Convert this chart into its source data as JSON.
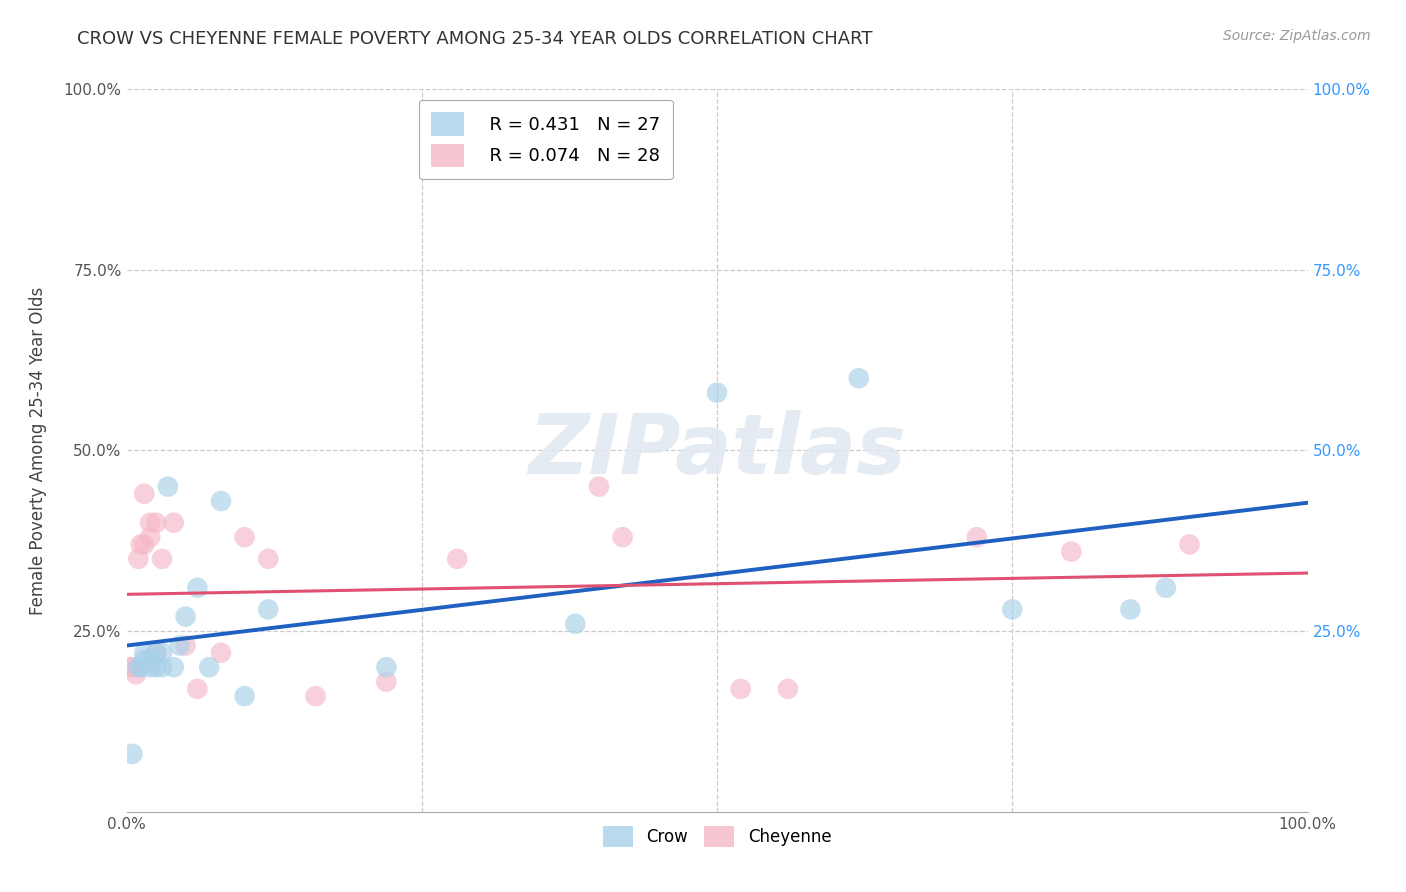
{
  "title": "CROW VS CHEYENNE FEMALE POVERTY AMONG 25-34 YEAR OLDS CORRELATION CHART",
  "source": "Source: ZipAtlas.com",
  "ylabel": "Female Poverty Among 25-34 Year Olds",
  "watermark": "ZIPatlas",
  "crow_R": 0.431,
  "crow_N": 27,
  "cheyenne_R": 0.074,
  "cheyenne_N": 28,
  "crow_color": "#a8d0e8",
  "cheyenne_color": "#f5b8c8",
  "crow_line_color": "#2060c0",
  "cheyenne_line_color": "#e05070",
  "background_color": "#ffffff",
  "grid_color": "#cccccc",
  "crow_x": [
    0.5,
    1.0,
    1.2,
    1.5,
    1.5,
    2.0,
    2.0,
    2.5,
    2.5,
    3.0,
    3.0,
    3.5,
    4.0,
    4.5,
    5.0,
    6.0,
    7.0,
    8.0,
    10.0,
    12.0,
    22.0,
    38.0,
    50.0,
    62.0,
    75.0,
    85.0,
    88.0
  ],
  "crow_y": [
    8.0,
    20.0,
    20.0,
    21.0,
    22.0,
    20.0,
    21.0,
    20.0,
    22.0,
    20.0,
    22.0,
    45.0,
    20.0,
    23.0,
    27.0,
    31.0,
    20.0,
    43.0,
    16.0,
    28.0,
    20.0,
    26.0,
    58.0,
    60.0,
    28.0,
    28.0,
    31.0
  ],
  "cheyenne_x": [
    0.3,
    0.5,
    0.8,
    1.0,
    1.2,
    1.5,
    1.5,
    2.0,
    2.0,
    2.5,
    2.5,
    3.0,
    4.0,
    5.0,
    6.0,
    8.0,
    10.0,
    12.0,
    16.0,
    22.0,
    28.0,
    40.0,
    52.0,
    42.0,
    56.0,
    72.0,
    80.0,
    90.0
  ],
  "cheyenne_y": [
    20.0,
    20.0,
    19.0,
    35.0,
    37.0,
    44.0,
    37.0,
    40.0,
    38.0,
    40.0,
    22.0,
    35.0,
    40.0,
    23.0,
    17.0,
    22.0,
    38.0,
    35.0,
    16.0,
    18.0,
    35.0,
    45.0,
    17.0,
    38.0,
    17.0,
    38.0,
    36.0,
    37.0
  ],
  "xlim": [
    0.0,
    100.0
  ],
  "ylim": [
    0.0,
    100.0
  ],
  "xticks": [
    0.0,
    25.0,
    50.0,
    75.0,
    100.0
  ],
  "yticks": [
    0.0,
    25.0,
    50.0,
    75.0,
    100.0
  ]
}
